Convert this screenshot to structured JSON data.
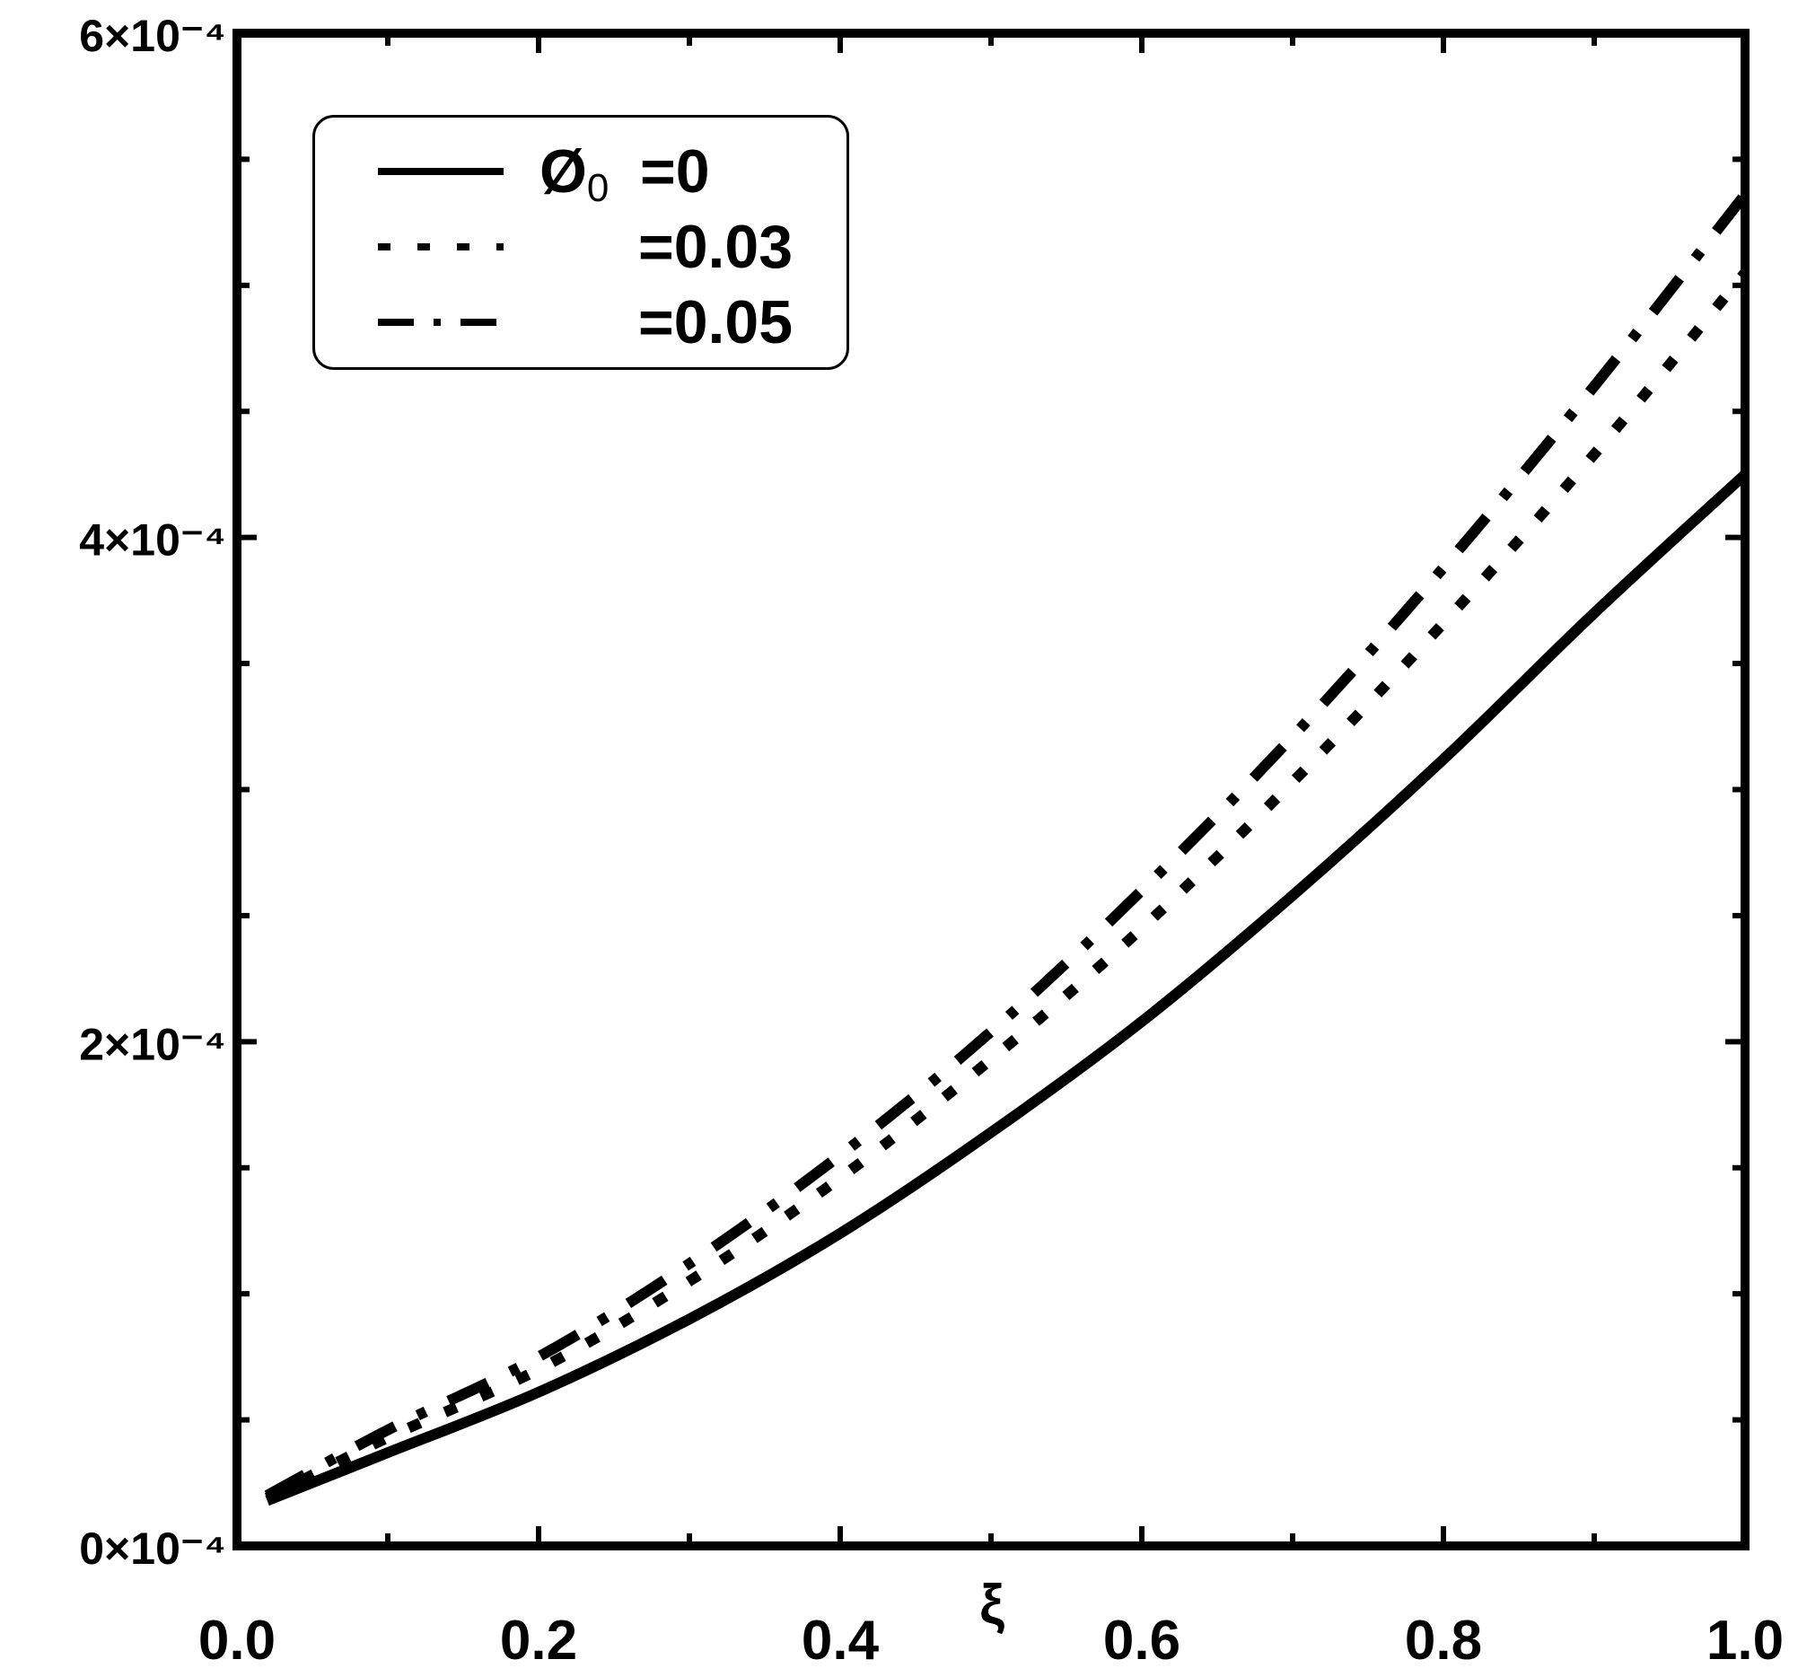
{
  "chart_data": {
    "type": "line",
    "xlabel": "ξ",
    "ylabel": "",
    "xlim": [
      0.0,
      1.0
    ],
    "ylim": [
      0.0,
      0.0006
    ],
    "x_ticks": [
      "0.0",
      "0.2",
      "0.4",
      "0.6",
      "0.8",
      "1.0"
    ],
    "y_ticks": [
      "0×10⁻⁴",
      "2×10⁻⁴",
      "4×10⁻⁴",
      "6×10⁻⁴"
    ],
    "legend_placement": "top-left",
    "legend_prefix": "Ø",
    "legend_prefix_sub": "0",
    "series": [
      {
        "name": "=0",
        "style": "solid",
        "x": [
          0.02,
          0.1,
          0.2,
          0.3,
          0.4,
          0.5,
          0.6,
          0.7,
          0.8,
          0.9,
          1.0
        ],
        "y": [
          1.8e-05,
          3.7e-05,
          6.1e-05,
          9e-05,
          0.000124,
          0.000164,
          0.000208,
          0.000258,
          0.000312,
          0.00037,
          0.000425
        ]
      },
      {
        "name": "=0.03",
        "style": "dotted",
        "x": [
          0.02,
          0.1,
          0.2,
          0.3,
          0.4,
          0.5,
          0.6,
          0.7,
          0.8,
          0.9,
          1.0
        ],
        "y": [
          1.9e-05,
          4.3e-05,
          7e-05,
          0.000105,
          0.000146,
          0.000193,
          0.000245,
          0.000303,
          0.000366,
          0.000433,
          0.000505
        ]
      },
      {
        "name": "=0.05",
        "style": "dash-dot",
        "x": [
          0.02,
          0.1,
          0.2,
          0.3,
          0.4,
          0.5,
          0.6,
          0.7,
          0.8,
          0.9,
          1.0
        ],
        "y": [
          2e-05,
          4.6e-05,
          7.5e-05,
          0.000112,
          0.000155,
          0.000204,
          0.00026,
          0.000321,
          0.000388,
          0.00046,
          0.000536
        ]
      }
    ]
  },
  "colors": {
    "line": "#000000",
    "background": "#ffffff"
  }
}
